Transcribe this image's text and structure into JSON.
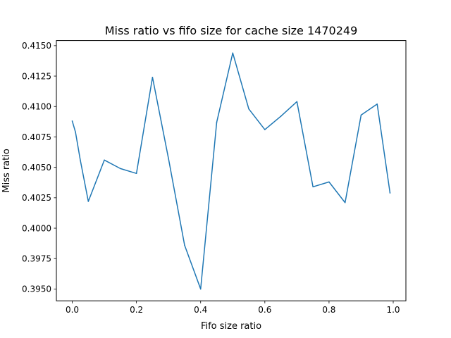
{
  "chart_data": {
    "type": "line",
    "title": "Miss ratio vs fifo size for cache size 1470249",
    "xlabel": "Fifo size ratio",
    "ylabel": "Miss ratio",
    "xlim": [
      -0.0495,
      1.0395
    ],
    "ylim": [
      0.39403,
      0.41542
    ],
    "grid": false,
    "xticks": [
      0.0,
      0.2,
      0.4,
      0.6,
      0.8,
      1.0
    ],
    "xtick_labels": [
      "0.0",
      "0.2",
      "0.4",
      "0.6",
      "0.8",
      "1.0"
    ],
    "yticks": [
      0.395,
      0.3975,
      0.4,
      0.4025,
      0.405,
      0.4075,
      0.41,
      0.4125,
      0.415
    ],
    "ytick_labels": [
      "0.3950",
      "0.3975",
      "0.4000",
      "0.4025",
      "0.4050",
      "0.4075",
      "0.4100",
      "0.4125",
      "0.4150"
    ],
    "series": [
      {
        "color": "#1f77b4",
        "x": [
          0.0,
          0.01,
          0.025,
          0.05,
          0.1,
          0.15,
          0.2,
          0.25,
          0.3,
          0.35,
          0.4,
          0.45,
          0.5,
          0.55,
          0.6,
          0.65,
          0.7,
          0.75,
          0.8,
          0.85,
          0.9,
          0.95,
          0.99
        ],
        "y": [
          0.4088,
          0.4079,
          0.4056,
          0.4022,
          0.4056,
          0.4049,
          0.4045,
          0.4124,
          0.4057,
          0.3986,
          0.395,
          0.4087,
          0.4144,
          0.4098,
          0.4081,
          0.4092,
          0.4104,
          0.4034,
          0.4038,
          0.4021,
          0.4093,
          0.4102,
          0.4029
        ]
      }
    ]
  }
}
